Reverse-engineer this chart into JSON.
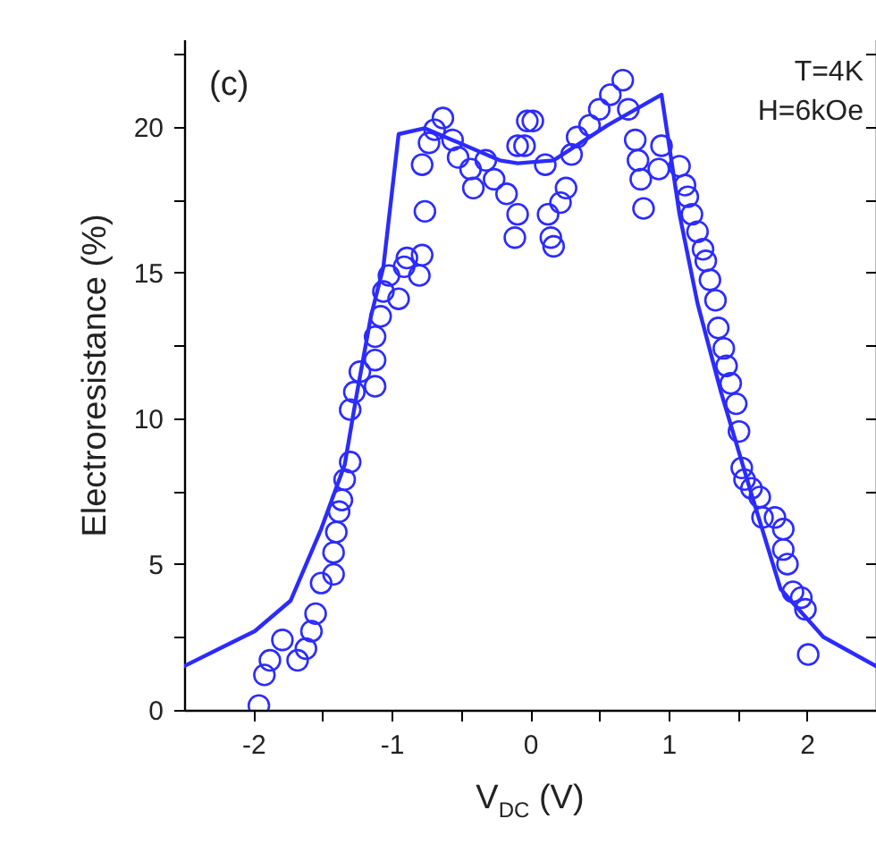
{
  "chart_data": {
    "type": "scatter",
    "xlabel": "V$_{DC}$ (V)",
    "ylabel": "Electroresistance (%)",
    "annotations": [
      "(c)",
      "T=4K",
      "H=6kOe"
    ],
    "xlim": [
      -2.5,
      2.5
    ],
    "xticks": [
      -2,
      {
        "value": -1.5,
        "label": null
      },
      -1,
      {
        "value": -0.5,
        "label": null
      },
      0,
      {
        "value": 0.5,
        "label": null
      },
      1,
      {
        "value": 1.5,
        "label": null
      },
      2
    ],
    "ylim": [
      0,
      23
    ],
    "yticks": [
      0,
      {
        "value": 2.5,
        "label": null
      },
      5,
      {
        "value": 7.5,
        "label": null
      },
      10,
      {
        "value": 12.5,
        "label": null
      },
      15,
      {
        "value": 17.5,
        "label": null
      },
      20,
      {
        "value": 22.5,
        "label": null
      }
    ],
    "grid": false,
    "series": [
      {
        "marker": "circle",
        "color": "#2b2bff",
        "x": [
          -1.96,
          -1.92,
          -1.88,
          -1.79,
          -1.68,
          -1.62,
          -1.58,
          -1.55,
          -1.51,
          -1.42,
          -1.42,
          -1.4,
          -1.38,
          -1.36,
          -1.34,
          -1.3,
          -1.3,
          -1.27,
          -1.23,
          -1.12,
          -1.12,
          -1.12,
          -1.08,
          -1.06,
          -1.02,
          -0.95,
          -0.91,
          -0.89,
          -0.8,
          -0.78,
          -0.76,
          -0.78,
          -0.73,
          -0.63,
          -0.69,
          -0.56,
          -0.52,
          -0.43,
          -0.41,
          -0.32,
          -0.26,
          -0.17,
          -0.11,
          -0.09,
          -0.09,
          -0.02,
          -0.04,
          0.02,
          0.11,
          0.13,
          0.15,
          0.17,
          0.22,
          0.26,
          0.3,
          0.34,
          0.43,
          0.5,
          0.58,
          0.67,
          0.71,
          0.76,
          0.78,
          0.82,
          0.8,
          0.95,
          0.93,
          1.08,
          1.12,
          1.14,
          1.17,
          1.21,
          1.25,
          1.27,
          1.3,
          1.34,
          1.36,
          1.4,
          1.42,
          1.45,
          1.49,
          1.51,
          1.53,
          1.55,
          1.6,
          1.66,
          1.68,
          1.77,
          1.83,
          1.83,
          1.86,
          1.9,
          1.96,
          1.99,
          2.01
        ],
        "values": [
          0.15,
          1.2,
          1.7,
          2.4,
          1.7,
          2.1,
          2.7,
          3.3,
          4.35,
          4.65,
          5.4,
          6.1,
          6.8,
          7.2,
          7.9,
          8.5,
          10.3,
          10.9,
          11.6,
          11.1,
          12.0,
          12.8,
          13.5,
          14.35,
          14.9,
          14.1,
          15.2,
          15.5,
          14.9,
          15.6,
          17.1,
          18.7,
          19.45,
          20.3,
          19.9,
          19.55,
          18.95,
          18.55,
          17.9,
          18.85,
          18.2,
          17.7,
          16.2,
          17.0,
          19.35,
          20.2,
          19.35,
          20.2,
          18.7,
          17.0,
          16.2,
          15.9,
          17.4,
          17.9,
          19.05,
          19.65,
          20.05,
          20.6,
          21.1,
          21.6,
          20.6,
          19.55,
          18.85,
          17.2,
          18.2,
          19.35,
          18.55,
          18.65,
          18.0,
          17.6,
          17.0,
          16.4,
          15.8,
          15.4,
          14.75,
          14.05,
          13.1,
          12.4,
          11.8,
          11.2,
          10.5,
          9.55,
          8.3,
          7.9,
          7.6,
          7.3,
          6.6,
          6.6,
          6.2,
          5.5,
          5.0,
          4.05,
          3.85,
          3.45,
          1.9
        ]
      },
      {
        "type": "line",
        "color": "#2b2bff",
        "x": [
          -2.5,
          -1.99,
          -1.73,
          -1.51,
          -1.34,
          -1.25,
          -1.15,
          -1.06,
          -0.95,
          -0.76,
          -0.22,
          -0.09,
          0.17,
          0.56,
          0.95,
          1.08,
          1.21,
          1.38,
          1.6,
          1.81,
          2.12,
          2.5
        ],
        "values": [
          1.5,
          2.7,
          3.75,
          6.2,
          8.4,
          10.9,
          13.5,
          15.2,
          19.75,
          19.95,
          18.85,
          18.75,
          18.85,
          20.05,
          21.1,
          17.0,
          13.95,
          10.9,
          7.4,
          4.15,
          2.5,
          1.5
        ]
      }
    ]
  }
}
